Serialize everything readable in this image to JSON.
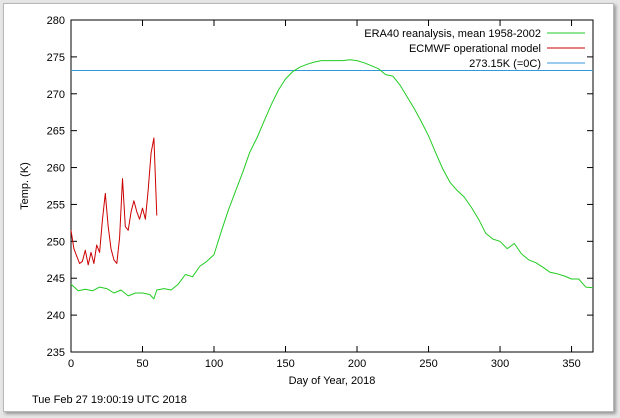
{
  "timestamp": "Tue Feb 27 19:00:19 UTC 2018",
  "chart_data": {
    "type": "line",
    "xlabel": "Day of Year, 2018",
    "ylabel": "Temp. (K)",
    "xlim": [
      0,
      365
    ],
    "ylim": [
      235,
      280
    ],
    "xticks": [
      0,
      50,
      100,
      150,
      200,
      250,
      300,
      350
    ],
    "yticks": [
      235,
      240,
      245,
      250,
      255,
      260,
      265,
      270,
      275,
      280
    ],
    "legend_position": "top-right",
    "grid": false,
    "series": [
      {
        "name": "ERA40 reanalysis, mean 1958-2002",
        "color": "#22cc22",
        "x": [
          0,
          5,
          10,
          15,
          20,
          25,
          30,
          35,
          40,
          45,
          50,
          55,
          58,
          60,
          65,
          70,
          75,
          80,
          85,
          90,
          95,
          100,
          105,
          110,
          115,
          120,
          125,
          130,
          135,
          140,
          145,
          150,
          155,
          160,
          165,
          170,
          175,
          180,
          185,
          190,
          195,
          200,
          205,
          210,
          215,
          220,
          225,
          230,
          235,
          240,
          245,
          250,
          255,
          260,
          265,
          270,
          275,
          280,
          285,
          290,
          295,
          300,
          305,
          310,
          315,
          320,
          325,
          330,
          335,
          340,
          345,
          350,
          355,
          360,
          365
        ],
        "values": [
          244.2,
          243.3,
          243.5,
          243.3,
          243.8,
          243.6,
          243.0,
          243.4,
          242.6,
          243.0,
          243.0,
          242.8,
          242.2,
          243.4,
          243.6,
          243.4,
          244.2,
          245.5,
          245.2,
          246.6,
          247.3,
          248.2,
          251.3,
          254.2,
          256.8,
          259.3,
          262.1,
          264.0,
          266.3,
          268.5,
          270.5,
          272.0,
          273.0,
          273.6,
          274.0,
          274.3,
          274.5,
          274.5,
          274.5,
          274.5,
          274.6,
          274.5,
          274.2,
          273.8,
          273.4,
          272.6,
          272.4,
          271.2,
          269.6,
          268.0,
          266.2,
          264.3,
          262.0,
          259.8,
          258.0,
          256.9,
          256.0,
          254.6,
          253.0,
          251.1,
          250.3,
          250.0,
          249.0,
          249.7,
          248.3,
          247.5,
          247.1,
          246.5,
          245.8,
          245.6,
          245.3,
          244.9,
          244.9,
          243.8,
          243.7
        ]
      },
      {
        "name": "ECMWF operational model",
        "color": "#cc0000",
        "x": [
          0,
          2,
          4,
          6,
          8,
          10,
          12,
          14,
          16,
          18,
          20,
          22,
          24,
          26,
          28,
          30,
          32,
          34,
          36,
          38,
          40,
          42,
          44,
          46,
          48,
          50,
          52,
          54,
          56,
          58,
          60
        ],
        "values": [
          251.5,
          249.0,
          248.0,
          247.0,
          247.3,
          248.8,
          246.8,
          248.5,
          247.0,
          249.5,
          248.5,
          253.0,
          256.5,
          252.0,
          249.0,
          247.5,
          247.0,
          250.5,
          258.5,
          252.0,
          251.5,
          254.0,
          255.5,
          254.0,
          253.0,
          254.5,
          253.0,
          257.0,
          262.0,
          264.0,
          253.5
        ]
      },
      {
        "name": "273.15K (=0C)",
        "color": "#3399dd",
        "x": [
          0,
          365
        ],
        "values": [
          273.15,
          273.15
        ]
      }
    ]
  }
}
